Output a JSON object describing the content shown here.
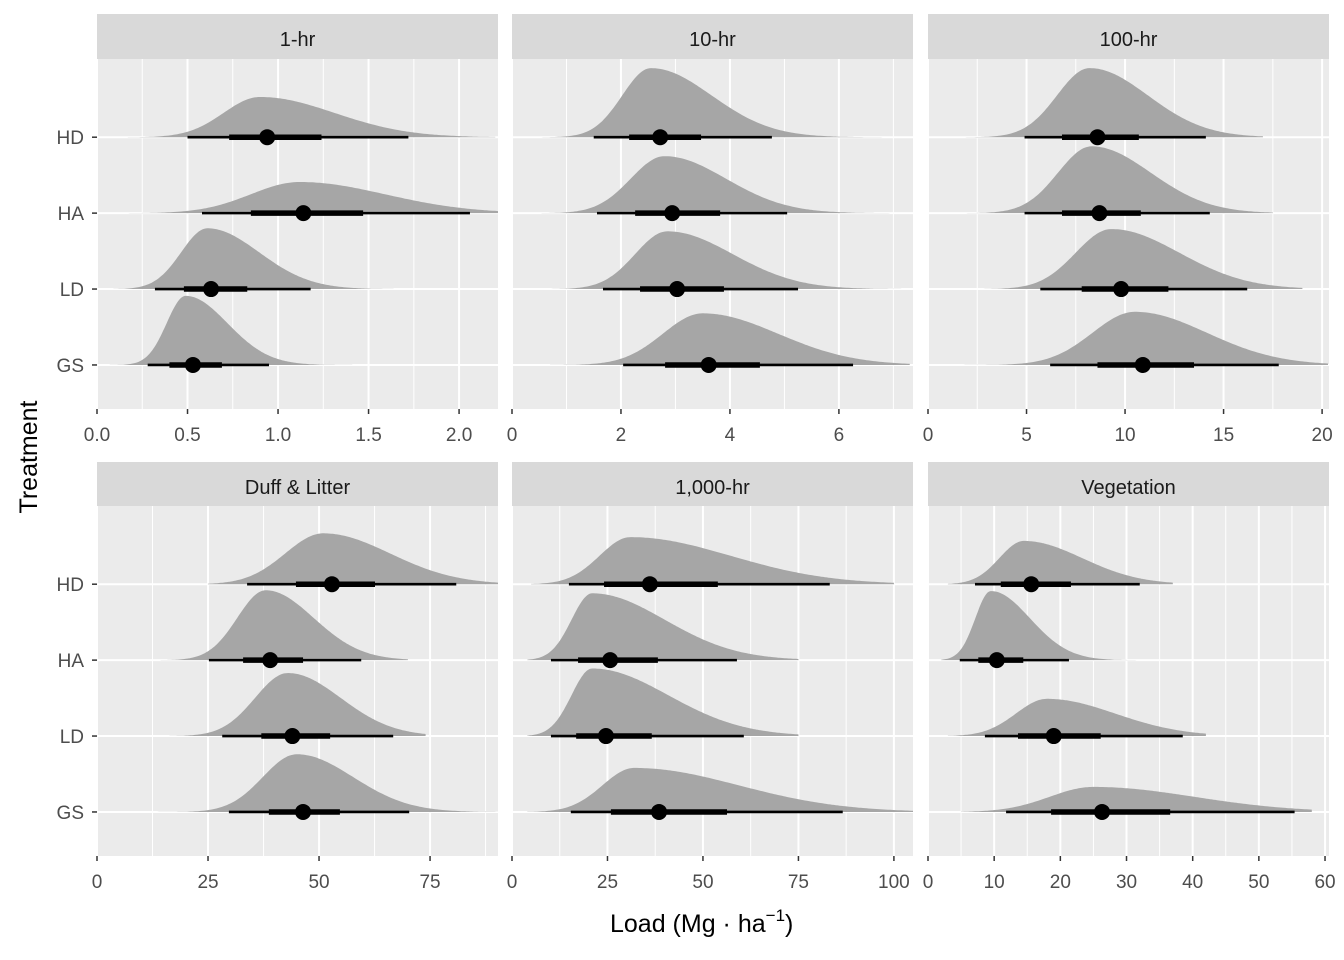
{
  "chart_data": {
    "type": "halfeye",
    "xlabel": "Load (Mg · ha",
    "xlabel_sup": "−1",
    "xlabel_close": ")",
    "ylabel": "Treatment",
    "treatments": [
      "HD",
      "HA",
      "LD",
      "GS"
    ],
    "grid": true,
    "colors": {
      "panel": "#EBEBEB",
      "strip": "#D9D9D9",
      "density": "#A6A6A6",
      "interval": "#000000",
      "grid": "#FFFFFF"
    },
    "panels": [
      {
        "title": "1-hr",
        "xlim": [
          0,
          2.215
        ],
        "ticks": [
          0,
          0.5,
          1,
          1.5,
          2
        ],
        "tick_labels": [
          "0.0",
          "0.5",
          "1.0",
          "1.5",
          "2.0"
        ],
        "minor": [
          0.25,
          0.75,
          1.25,
          1.75
        ],
        "series": [
          {
            "treatment": "HD",
            "median": 0.94,
            "q66": [
              0.73,
              1.24
            ],
            "q95": [
              0.5,
              1.72
            ],
            "mode": 0.9,
            "range": [
              0.17,
              2.2
            ],
            "peak": 0.53
          },
          {
            "treatment": "HA",
            "median": 1.14,
            "q66": [
              0.85,
              1.47
            ],
            "q95": [
              0.58,
              2.06
            ],
            "mode": 1.12,
            "range": [
              0.12,
              2.22
            ],
            "peak": 0.41
          },
          {
            "treatment": "LD",
            "median": 0.63,
            "q66": [
              0.48,
              0.83
            ],
            "q95": [
              0.32,
              1.18
            ],
            "mode": 0.61,
            "range": [
              0.05,
              1.85
            ],
            "peak": 0.8
          },
          {
            "treatment": "GS",
            "median": 0.53,
            "q66": [
              0.4,
              0.69
            ],
            "q95": [
              0.28,
              0.95
            ],
            "mode": 0.49,
            "range": [
              0.07,
              1.41
            ],
            "peak": 0.91
          }
        ]
      },
      {
        "title": "10-hr",
        "xlim": [
          0,
          7.36
        ],
        "ticks": [
          0,
          2,
          4,
          6
        ],
        "tick_labels": [
          "0",
          "2",
          "4",
          "6"
        ],
        "minor": [
          1,
          3,
          5,
          7
        ],
        "series": [
          {
            "treatment": "HD",
            "median": 2.72,
            "q66": [
              2.15,
              3.47
            ],
            "q95": [
              1.5,
              4.77
            ],
            "mode": 2.55,
            "range": [
              0.4,
              7.36
            ],
            "peak": 0.91
          },
          {
            "treatment": "HA",
            "median": 2.94,
            "q66": [
              2.26,
              3.82
            ],
            "q95": [
              1.56,
              5.05
            ],
            "mode": 2.8,
            "range": [
              0.35,
              7.36
            ],
            "peak": 0.75
          },
          {
            "treatment": "LD",
            "median": 3.03,
            "q66": [
              2.35,
              3.89
            ],
            "q95": [
              1.67,
              5.25
            ],
            "mode": 2.85,
            "range": [
              0.55,
              7.36
            ],
            "peak": 0.76
          },
          {
            "treatment": "GS",
            "median": 3.61,
            "q66": [
              2.81,
              4.55
            ],
            "q95": [
              2.04,
              6.26
            ],
            "mode": 3.5,
            "range": [
              0.7,
              7.3
            ],
            "peak": 0.68
          }
        ]
      },
      {
        "title": "100-hr",
        "xlim": [
          0,
          20.35
        ],
        "ticks": [
          0,
          5,
          10,
          15,
          20
        ],
        "tick_labels": [
          "0",
          "5",
          "10",
          "15",
          "20"
        ],
        "minor": [
          2.5,
          7.5,
          12.5,
          17.5
        ],
        "series": [
          {
            "treatment": "HD",
            "median": 8.6,
            "q66": [
              6.8,
              10.7
            ],
            "q95": [
              4.9,
              14.1
            ],
            "mode": 8.2,
            "range": [
              1.5,
              17
            ],
            "peak": 0.91
          },
          {
            "treatment": "HA",
            "median": 8.7,
            "q66": [
              6.8,
              10.8
            ],
            "q95": [
              4.9,
              14.3
            ],
            "mode": 8.3,
            "range": [
              1.2,
              17.5
            ],
            "peak": 0.88
          },
          {
            "treatment": "LD",
            "median": 9.8,
            "q66": [
              7.8,
              12.2
            ],
            "q95": [
              5.7,
              16.2
            ],
            "mode": 9.3,
            "range": [
              1.6,
              19
            ],
            "peak": 0.79
          },
          {
            "treatment": "GS",
            "median": 10.9,
            "q66": [
              8.6,
              13.5
            ],
            "q95": [
              6.2,
              17.8
            ],
            "mode": 10.5,
            "range": [
              1.8,
              20.3
            ],
            "peak": 0.7
          }
        ]
      },
      {
        "title": "Duff & Litter",
        "xlim": [
          0,
          90.3
        ],
        "ticks": [
          0,
          25,
          50,
          75
        ],
        "tick_labels": [
          "0",
          "25",
          "50",
          "75"
        ],
        "minor": [
          12.5,
          37.5,
          62.5,
          87.5
        ],
        "series": [
          {
            "treatment": "HD",
            "median": 52.9,
            "q66": [
              44.8,
              62.6
            ],
            "q95": [
              33.8,
              80.9
            ],
            "mode": 51,
            "range": [
              25,
              90.3
            ],
            "peak": 0.67
          },
          {
            "treatment": "HA",
            "median": 39.0,
            "q66": [
              32.9,
              46.4
            ],
            "q95": [
              25.2,
              59.5
            ],
            "mode": 38,
            "range": [
              9,
              70
            ],
            "peak": 0.92
          },
          {
            "treatment": "LD",
            "median": 44.0,
            "q66": [
              37.0,
              52.5
            ],
            "q95": [
              28.2,
              66.7
            ],
            "mode": 43,
            "range": [
              9,
              74
            ],
            "peak": 0.83
          },
          {
            "treatment": "GS",
            "median": 46.4,
            "q66": [
              38.7,
              54.7
            ],
            "q95": [
              29.7,
              70.3
            ],
            "mode": 45,
            "range": [
              12,
              90.3
            ],
            "peak": 0.76
          }
        ]
      },
      {
        "title": "1,000-hr",
        "xlim": [
          0,
          105
        ],
        "ticks": [
          0,
          25,
          50,
          75,
          100
        ],
        "tick_labels": [
          "0",
          "25",
          "50",
          "75",
          "100"
        ],
        "minor": [
          12.5,
          37.5,
          62.5,
          87.5
        ],
        "series": [
          {
            "treatment": "HD",
            "median": 36.1,
            "q66": [
              24.1,
              53.9
            ],
            "q95": [
              14.9,
              83.2
            ],
            "mode": 31,
            "range": [
              5,
              100
            ],
            "peak": 0.62
          },
          {
            "treatment": "HA",
            "median": 25.7,
            "q66": [
              17.3,
              38.2
            ],
            "q95": [
              10.2,
              58.9
            ],
            "mode": 21,
            "range": [
              4,
              75
            ],
            "peak": 0.88
          },
          {
            "treatment": "LD",
            "median": 24.6,
            "q66": [
              16.8,
              36.6
            ],
            "q95": [
              10.2,
              60.7
            ],
            "mode": 21,
            "range": [
              4,
              75
            ],
            "peak": 0.89
          },
          {
            "treatment": "GS",
            "median": 38.5,
            "q66": [
              25.9,
              56.3
            ],
            "q95": [
              15.4,
              86.6
            ],
            "mode": 32,
            "range": [
              4,
              105
            ],
            "peak": 0.58
          }
        ]
      },
      {
        "title": "Vegetation",
        "xlim": [
          0,
          60.6
        ],
        "ticks": [
          0,
          10,
          20,
          30,
          40,
          50,
          60
        ],
        "tick_labels": [
          "0",
          "10",
          "20",
          "30",
          "40",
          "50",
          "60"
        ],
        "minor": [
          5,
          15,
          25,
          35,
          45,
          55
        ],
        "series": [
          {
            "treatment": "HD",
            "median": 15.6,
            "q66": [
              11.0,
              21.6
            ],
            "q95": [
              7.1,
              32.0
            ],
            "mode": 14.5,
            "range": [
              3,
              37
            ],
            "peak": 0.57
          },
          {
            "treatment": "HA",
            "median": 10.4,
            "q66": [
              7.6,
              14.4
            ],
            "q95": [
              4.8,
              21.3
            ],
            "mode": 9.5,
            "range": [
              2,
              50
            ],
            "peak": 0.91
          },
          {
            "treatment": "LD",
            "median": 19.0,
            "q66": [
              13.6,
              26.1
            ],
            "q95": [
              8.6,
              38.5
            ],
            "mode": 18,
            "range": [
              3,
              42
            ],
            "peak": 0.49
          },
          {
            "treatment": "GS",
            "median": 26.3,
            "q66": [
              18.6,
              36.6
            ],
            "q95": [
              11.8,
              55.4
            ],
            "mode": 25,
            "range": [
              5,
              58
            ],
            "peak": 0.33
          }
        ]
      }
    ]
  }
}
